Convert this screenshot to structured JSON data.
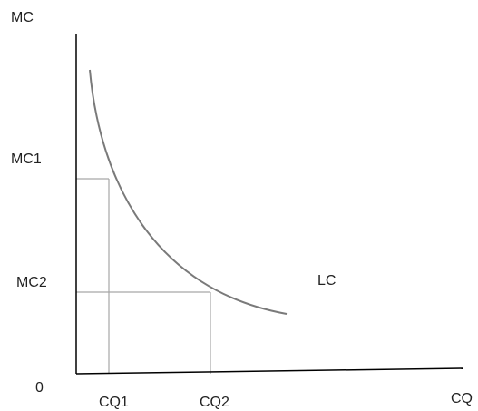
{
  "diagram": {
    "y_axis_label": "MC",
    "x_axis_label": "CQ",
    "origin_label": "0",
    "y_marks": [
      "MC1",
      "MC2"
    ],
    "x_marks": [
      "CQ1",
      "CQ2"
    ],
    "curve_label": "LC",
    "colors": {
      "axis": "#000000",
      "curve": "#7a7a7a",
      "guide": "#a6a6a6",
      "text": "#222222"
    }
  }
}
